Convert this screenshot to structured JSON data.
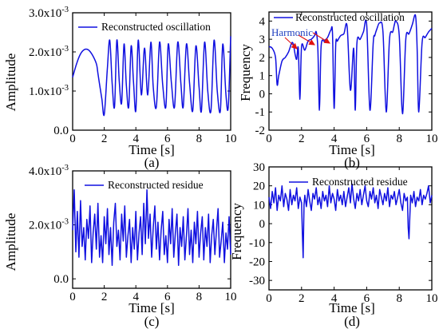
{
  "colors": {
    "series": "#1010e0",
    "annotation": "#1f3fbf",
    "arrow": "#e01010",
    "axis": "#000000"
  },
  "chart_data": [
    {
      "panel": "(a)",
      "type": "line",
      "xlabel": "Time [s]",
      "ylabel": "Amplitude",
      "xlim": [
        0,
        10
      ],
      "ylim": [
        0,
        0.003
      ],
      "xticks": [
        0,
        2,
        4,
        6,
        8,
        10
      ],
      "yticks": [
        "0.0",
        "1.0x10-3",
        "2.0x10-3",
        "3.0x10-3"
      ],
      "grid": false,
      "legend": "top-right",
      "series": [
        {
          "name": "Reconstructed oscillation",
          "x": [
            0,
            0.25,
            0.5,
            0.75,
            1.0,
            1.25,
            1.5,
            1.6,
            1.75,
            1.85,
            2.0,
            2.2,
            2.35,
            2.5,
            2.65,
            2.8,
            2.95,
            3.1,
            3.25,
            3.4,
            3.55,
            3.7,
            3.85,
            4.0,
            4.15,
            4.35,
            4.55,
            4.75,
            4.95,
            5.1,
            5.3,
            5.5,
            5.7,
            5.9,
            6.05,
            6.25,
            6.45,
            6.65,
            6.85,
            7.0,
            7.2,
            7.4,
            7.6,
            7.8,
            8.0,
            8.15,
            8.35,
            8.55,
            8.75,
            8.95,
            9.15,
            9.35,
            9.5,
            9.7,
            9.85,
            10.0
          ],
          "y": [
            0.00135,
            0.0017,
            0.00195,
            0.00206,
            0.00205,
            0.00192,
            0.0017,
            0.00145,
            0.00105,
            0.0008,
            0.0004,
            0.0016,
            0.0023,
            0.0012,
            0.0006,
            0.0023,
            0.00125,
            0.0007,
            0.0022,
            0.00115,
            0.0006,
            0.00215,
            0.00125,
            0.0005,
            0.0023,
            0.0009,
            0.0021,
            0.0009,
            0.00225,
            0.0011,
            0.0006,
            0.00225,
            0.00115,
            0.0006,
            0.0022,
            0.0012,
            0.0006,
            0.00225,
            0.0012,
            0.0006,
            0.0022,
            0.0012,
            0.0005,
            0.00215,
            0.0011,
            0.0005,
            0.00225,
            0.001,
            0.0005,
            0.0023,
            0.001,
            0.0005,
            0.0022,
            0.0009,
            0.0006,
            0.0024
          ]
        }
      ]
    },
    {
      "panel": "(b)",
      "type": "line",
      "xlabel": "Time [s]",
      "ylabel": "Frequency",
      "xlim": [
        0,
        10
      ],
      "ylim": [
        -2,
        4.5
      ],
      "xticks": [
        0,
        2,
        4,
        6,
        8,
        10
      ],
      "yticks": [
        -2,
        -1,
        0,
        1,
        2,
        3,
        4
      ],
      "grid": false,
      "legend": "top-right",
      "annotation": "Harmonic",
      "series": [
        {
          "name": "Reconstructed oscillation",
          "x": [
            0,
            0.2,
            0.4,
            0.5,
            0.6,
            0.8,
            1.0,
            1.2,
            1.4,
            1.5,
            1.6,
            1.7,
            1.8,
            1.9,
            2.0,
            2.2,
            2.4,
            2.6,
            2.8,
            2.9,
            3.0,
            3.1,
            3.2,
            3.4,
            3.6,
            3.8,
            3.9,
            4.0,
            4.1,
            4.2,
            4.4,
            4.6,
            4.8,
            5.0,
            5.2,
            5.3,
            5.4,
            5.6,
            5.8,
            6.0,
            6.2,
            6.4,
            6.5,
            6.6,
            6.8,
            7.0,
            7.2,
            7.4,
            7.6,
            7.7,
            7.8,
            8.0,
            8.2,
            8.4,
            8.6,
            8.8,
            9.0,
            9.1,
            9.2,
            9.4,
            9.6,
            9.8,
            10.0
          ],
          "y": [
            2.6,
            2.5,
            2.0,
            0.5,
            1.0,
            1.8,
            2.0,
            2.3,
            2.8,
            2.7,
            2.2,
            1.9,
            2.5,
            -0.3,
            2.6,
            2.4,
            2.9,
            3.0,
            3.2,
            3.4,
            2.5,
            -0.9,
            2.6,
            2.9,
            3.1,
            3.5,
            3.3,
            -0.8,
            2.7,
            2.9,
            3.2,
            3.3,
            3.7,
            0.2,
            2.5,
            -0.9,
            2.8,
            3.0,
            3.4,
            3.8,
            -0.9,
            2.8,
            3.2,
            3.5,
            3.9,
            3.4,
            -1.0,
            3.0,
            3.4,
            3.8,
            4.0,
            3.2,
            -1.1,
            3.0,
            3.3,
            3.8,
            4.3,
            2.5,
            -1.0,
            2.8,
            3.1,
            3.4,
            3.6
          ]
        }
      ]
    },
    {
      "panel": "(c)",
      "type": "line",
      "xlabel": "Time [s]",
      "ylabel": "Amplitude",
      "xlim": [
        0,
        10
      ],
      "ylim": [
        -0.00035,
        0.004
      ],
      "xticks": [
        0,
        2,
        4,
        6,
        8,
        10
      ],
      "yticks": [
        "0.0",
        "2.0x10-3",
        "4.0x10-3"
      ],
      "grid": false,
      "legend": "top-right",
      "series": [
        {
          "name": "Reconstructed residue",
          "x": [
            0,
            0.1,
            0.2,
            0.3,
            0.4,
            0.5,
            0.6,
            0.7,
            0.8,
            0.9,
            1.0,
            1.1,
            1.2,
            1.3,
            1.4,
            1.5,
            1.6,
            1.7,
            1.8,
            1.9,
            2.0,
            2.1,
            2.2,
            2.3,
            2.4,
            2.5,
            2.6,
            2.7,
            2.8,
            2.9,
            3.0,
            3.1,
            3.2,
            3.3,
            3.4,
            3.5,
            3.6,
            3.7,
            3.8,
            3.9,
            4.0,
            4.1,
            4.2,
            4.3,
            4.4,
            4.5,
            4.6,
            4.7,
            4.8,
            4.9,
            5.0,
            5.1,
            5.2,
            5.3,
            5.4,
            5.5,
            5.6,
            5.7,
            5.8,
            5.9,
            6.0,
            6.1,
            6.2,
            6.3,
            6.4,
            6.5,
            6.6,
            6.7,
            6.8,
            6.9,
            7.0,
            7.1,
            7.2,
            7.3,
            7.4,
            7.5,
            7.6,
            7.7,
            7.8,
            7.9,
            8.0,
            8.1,
            8.2,
            8.3,
            8.4,
            8.5,
            8.6,
            8.7,
            8.8,
            8.9,
            9.0,
            9.1,
            9.2,
            9.3,
            9.4,
            9.5,
            9.6,
            9.7,
            9.8,
            9.9,
            10.0
          ],
          "y": [
            0.0018,
            0.0033,
            0.001,
            0.0025,
            0.0008,
            0.0029,
            0.0012,
            0.0019,
            0.0007,
            0.0022,
            0.0015,
            0.0027,
            0.0006,
            0.0017,
            0.0024,
            0.0011,
            0.0028,
            0.0008,
            0.0016,
            0.0006,
            0.0023,
            0.0013,
            0.0026,
            0.0009,
            0.0019,
            0.0005,
            0.0021,
            0.0028,
            0.0012,
            0.0018,
            0.0007,
            0.0024,
            0.0014,
            0.0027,
            0.0008,
            0.0016,
            0.0022,
            0.0006,
            0.0019,
            0.0011,
            0.0025,
            0.0007,
            0.0017,
            0.0023,
            0.0009,
            0.0028,
            0.0013,
            0.0033,
            0.0015,
            0.0024,
            0.0008,
            0.0019,
            0.0027,
            0.0011,
            0.0021,
            0.0007,
            0.0018,
            0.0025,
            0.0009,
            0.0016,
            0.0006,
            0.0022,
            0.0013,
            0.0026,
            0.0008,
            0.0017,
            0.0024,
            0.0005,
            0.0019,
            0.0012,
            0.0023,
            0.0007,
            0.0016,
            0.0026,
            0.0009,
            0.0018,
            0.0006,
            0.0021,
            0.0013,
            0.0025,
            0.0008,
            0.0017,
            0.0023,
            0.0007,
            0.0019,
            0.0012,
            0.0024,
            0.0006,
            0.0016,
            0.0022,
            0.0009,
            0.0018,
            0.0026,
            0.0008,
            0.0014,
            0.0021,
            0.0006,
            0.0017,
            0.0011,
            0.0023,
            0.0009
          ]
        }
      ]
    },
    {
      "panel": "(d)",
      "type": "line",
      "xlabel": "Time [s]",
      "ylabel": "Frequency",
      "xlim": [
        0,
        10
      ],
      "ylim": [
        -35,
        30
      ],
      "xticks": [
        0,
        2,
        4,
        6,
        8,
        10
      ],
      "yticks": [
        -30,
        -20,
        -10,
        0,
        10,
        20,
        30
      ],
      "grid": false,
      "legend": "top-right",
      "series": [
        {
          "name": "Reconstructed residue",
          "x": [
            0,
            0.1,
            0.2,
            0.3,
            0.4,
            0.5,
            0.6,
            0.7,
            0.8,
            0.9,
            1.0,
            1.1,
            1.2,
            1.3,
            1.4,
            1.5,
            1.6,
            1.7,
            1.8,
            1.9,
            2.0,
            2.05,
            2.1,
            2.15,
            2.2,
            2.3,
            2.4,
            2.5,
            2.6,
            2.7,
            2.8,
            2.9,
            3.0,
            3.1,
            3.2,
            3.3,
            3.4,
            3.5,
            3.6,
            3.7,
            3.8,
            3.9,
            4.0,
            4.1,
            4.2,
            4.3,
            4.4,
            4.5,
            4.6,
            4.7,
            4.8,
            4.9,
            5.0,
            5.1,
            5.2,
            5.3,
            5.4,
            5.5,
            5.6,
            5.7,
            5.8,
            5.9,
            6.0,
            6.1,
            6.2,
            6.3,
            6.4,
            6.5,
            6.6,
            6.7,
            6.8,
            6.9,
            7.0,
            7.1,
            7.2,
            7.3,
            7.4,
            7.5,
            7.6,
            7.7,
            7.8,
            7.9,
            8.0,
            8.1,
            8.2,
            8.3,
            8.4,
            8.5,
            8.55,
            8.6,
            8.7,
            8.8,
            8.9,
            9.0,
            9.1,
            9.2,
            9.3,
            9.4,
            9.5,
            9.6,
            9.7,
            9.8,
            9.9,
            10.0
          ],
          "y": [
            14,
            8,
            17,
            11,
            19,
            7,
            15,
            12,
            20,
            9,
            16,
            13,
            7,
            18,
            10,
            15,
            12,
            19,
            8,
            14,
            11,
            -5,
            -18,
            10,
            15,
            9,
            18,
            12,
            7,
            16,
            13,
            19,
            10,
            14,
            8,
            17,
            12,
            15,
            9,
            20,
            11,
            16,
            13,
            7,
            18,
            12,
            15,
            10,
            17,
            9,
            14,
            19,
            11,
            21,
            13,
            8,
            16,
            12,
            18,
            10,
            15,
            20,
            12,
            9,
            17,
            13,
            19,
            11,
            15,
            8,
            18,
            14,
            10,
            16,
            12,
            19,
            9,
            15,
            13,
            17,
            10,
            14,
            18,
            11,
            7,
            16,
            12,
            14,
            -2,
            -8,
            15,
            11,
            17,
            9,
            14,
            12,
            18,
            10,
            15,
            13,
            16,
            20,
            11,
            15
          ]
        }
      ]
    }
  ]
}
